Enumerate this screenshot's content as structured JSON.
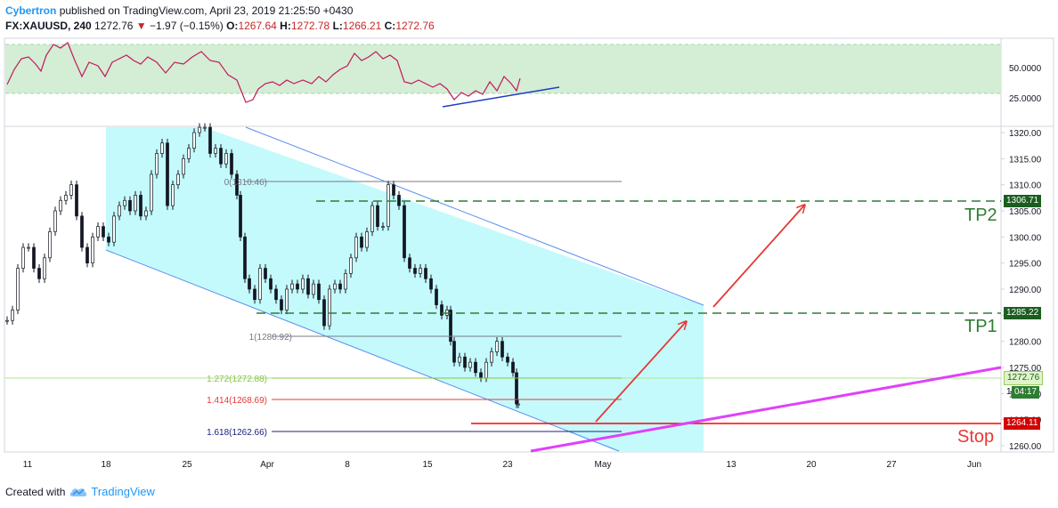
{
  "header": {
    "author": "Cybertron",
    "published_text": "published on TradingView.com, April 23, 2019 21:25:50 +0430",
    "symbol": "FX:XAUUSD, 240",
    "last_price": "1272.76",
    "change_arrow": "▼",
    "change": "−1.97 (−0.15%)",
    "open_label": "O:",
    "open": "1267.64",
    "high_label": "H:",
    "high": "1272.78",
    "low_label": "L:",
    "low": "1266.21",
    "close_label": "C:",
    "close": "1272.76"
  },
  "rsi_panel": {
    "levels": [
      "50.0000",
      "25.0000"
    ]
  },
  "price_axis": {
    "ticks": [
      "1320.00",
      "1315.00",
      "1310.00",
      "1305.00",
      "1300.00",
      "1295.00",
      "1290.00",
      "1285.00",
      "1280.00",
      "1275.00",
      "1270.00",
      "1265.00",
      "1260.00"
    ]
  },
  "price_tags": {
    "tp2": "1306.71",
    "tp1": "1285.22",
    "current": "1272.76",
    "timer": "04:17",
    "stop": "1264.11",
    "small_one": "1"
  },
  "time_axis": {
    "ticks": [
      "11",
      "18",
      "25",
      "Apr",
      "8",
      "15",
      "23",
      "May",
      "13",
      "20",
      "27",
      "Jun"
    ]
  },
  "fib_levels": [
    {
      "label": "0(1310.46)",
      "color": "#787b86"
    },
    {
      "label": "1(1280.92)",
      "color": "#787b86"
    },
    {
      "label": "1.272(1272.88)",
      "color": "#8bc34a"
    },
    {
      "label": "1.414(1268.69)",
      "color": "#e53935"
    },
    {
      "label": "1.618(1262.66)",
      "color": "#1a237e"
    }
  ],
  "annotations": {
    "tp2": "TP2",
    "tp1": "TP1",
    "stop": "Stop"
  },
  "footer": {
    "created_with": "Created with",
    "brand": "TradingView"
  },
  "colors": {
    "channel_fill": "#c4fafc",
    "channel_line": "#5b8def",
    "rsi_band": "#d4edd5",
    "rsi_line": "#c2185b",
    "tp_line": "#2e7d32",
    "stop_line": "#ff0000",
    "trendline": "#e040fb",
    "arrow": "#e53935"
  }
}
